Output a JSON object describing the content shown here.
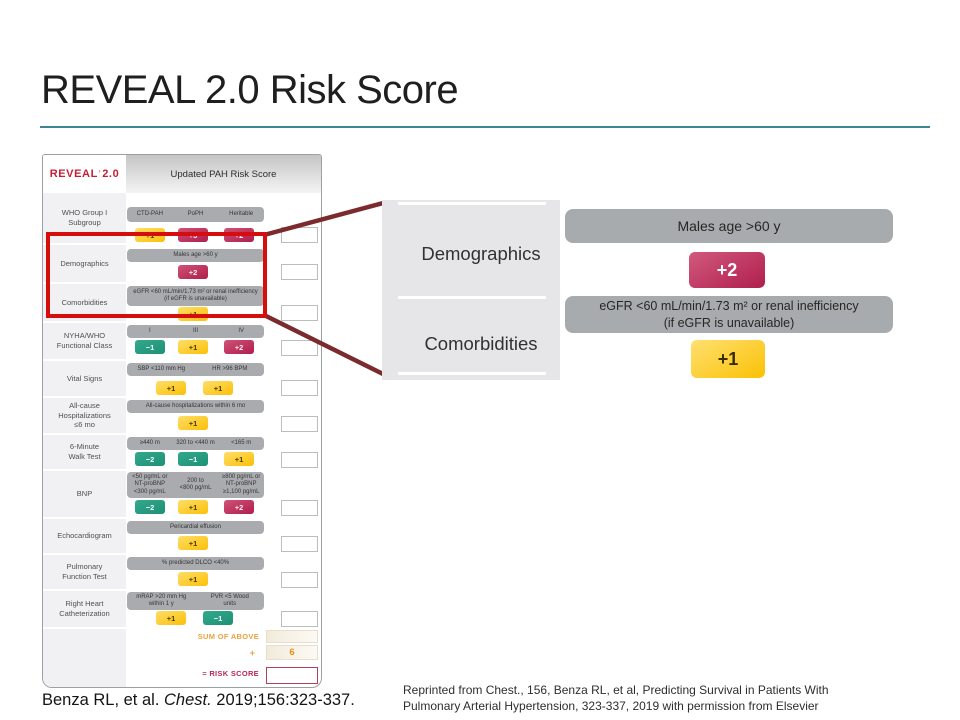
{
  "title": "REVEAL 2.0 Risk Score",
  "table": {
    "brand": "REVEAL",
    "brand_mark": "’",
    "brand_version": "2.0",
    "header": "Updated PAH Risk Score",
    "rows": [
      {
        "label": "WHO Group I\nSubgroup",
        "bar": [
          "CTD-PAH",
          "PoPH",
          "Heritable"
        ],
        "badges": [
          {
            "value": "+1",
            "color": "yellow"
          },
          {
            "value": "+3",
            "color": "red"
          },
          {
            "value": "+2",
            "color": "red"
          }
        ]
      },
      {
        "label": "Demographics",
        "bar": [
          "Males age >60 y"
        ],
        "badges": [
          {
            "value": "+2",
            "color": "red"
          }
        ]
      },
      {
        "label": "Comorbidities",
        "bar": [
          "eGFR <60 mL/min/1.73 m² or renal inefficiency\n(if eGFR is unavailable)"
        ],
        "badges": [
          {
            "value": "+1",
            "color": "yellow"
          }
        ]
      },
      {
        "label": "NYHA/WHO\nFunctional Class",
        "bar": [
          "I",
          "III",
          "IV"
        ],
        "badges": [
          {
            "value": "−1",
            "color": "green"
          },
          {
            "value": "+1",
            "color": "yellow"
          },
          {
            "value": "+2",
            "color": "red"
          }
        ]
      },
      {
        "label": "Vital Signs",
        "bar": [
          "SBP <110 mm Hg",
          "HR >96 BPM"
        ],
        "badges": [
          {
            "value": "+1",
            "color": "yellow"
          },
          {
            "value": "+1",
            "color": "yellow"
          }
        ]
      },
      {
        "label": "All-cause\nHospitalizations\n≤6 mo",
        "bar": [
          "All-cause hospitalizations within 6 mo"
        ],
        "badges": [
          {
            "value": "+1",
            "color": "yellow"
          }
        ]
      },
      {
        "label": "6-Minute\nWalk Test",
        "bar": [
          "≥440 m",
          "320 to <440 m",
          "<165 m"
        ],
        "badges": [
          {
            "value": "−2",
            "color": "green"
          },
          {
            "value": "−1",
            "color": "green"
          },
          {
            "value": "+1",
            "color": "yellow"
          }
        ]
      },
      {
        "label": "BNP",
        "bar": [
          "<50 pg/mL or\nNT-proBNP\n<300 pg/mL",
          "200 to\n<800 pg/mL",
          "≥800 pg/mL or\nNT-proBNP\n≥1,100 pg/mL"
        ],
        "badges": [
          {
            "value": "−2",
            "color": "green"
          },
          {
            "value": "+1",
            "color": "yellow"
          },
          {
            "value": "+2",
            "color": "red"
          }
        ]
      },
      {
        "label": "Echocardiogram",
        "bar": [
          "Pericardial effusion"
        ],
        "badges": [
          {
            "value": "+1",
            "color": "yellow"
          }
        ]
      },
      {
        "label": "Pulmonary\nFunction Test",
        "bar": [
          "% predicted DLCO <40%"
        ],
        "badges": [
          {
            "value": "+1",
            "color": "yellow"
          }
        ]
      },
      {
        "label": "Right Heart\nCatheterization",
        "bar": [
          "mRAP >20 mm Hg\nwithin 1 y",
          "PVR <5 Wood\nunits"
        ],
        "badges": [
          {
            "value": "+1",
            "color": "yellow"
          },
          {
            "value": "−1",
            "color": "green"
          }
        ]
      }
    ],
    "sum_label": "SUM OF ABOVE",
    "plus_sign": "+",
    "constant": "6",
    "risk_label": "= RISK SCORE"
  },
  "callout": {
    "labels": [
      "Demographics",
      "Comorbidities"
    ]
  },
  "zoom": {
    "bar1": "Males age >60 y",
    "badge_demographics": "+2",
    "bar2_line1": "eGFR <60 mL/min/1.73 m² or renal inefficiency",
    "bar2_line2": "(if eGFR is unavailable)",
    "badge_comorbidities": "+1"
  },
  "citation_left": {
    "pre": "Benza RL, et al. ",
    "journal": "Chest.",
    "post": " 2019;156:323-337."
  },
  "citation_right": {
    "line1": "Reprinted from Chest., 156, Benza RL, et al, Predicting Survival in Patients With",
    "line2": "Pulmonary Arterial Hypertension, 323-337, 2019 with permission from Elsevier"
  },
  "colors": {
    "badge_yellow": "#fbc008",
    "badge_green": "#229a7e",
    "badge_red": "#b01d4b",
    "bar_gray": "#a9abae",
    "highlight_red": "#d60d0d",
    "connector_maroon": "#7b2a2d",
    "title_rule_teal": "#3e8592",
    "sum_orange": "#eaa33e",
    "risk_crimson": "#b8275b",
    "brand_red": "#c32034"
  }
}
